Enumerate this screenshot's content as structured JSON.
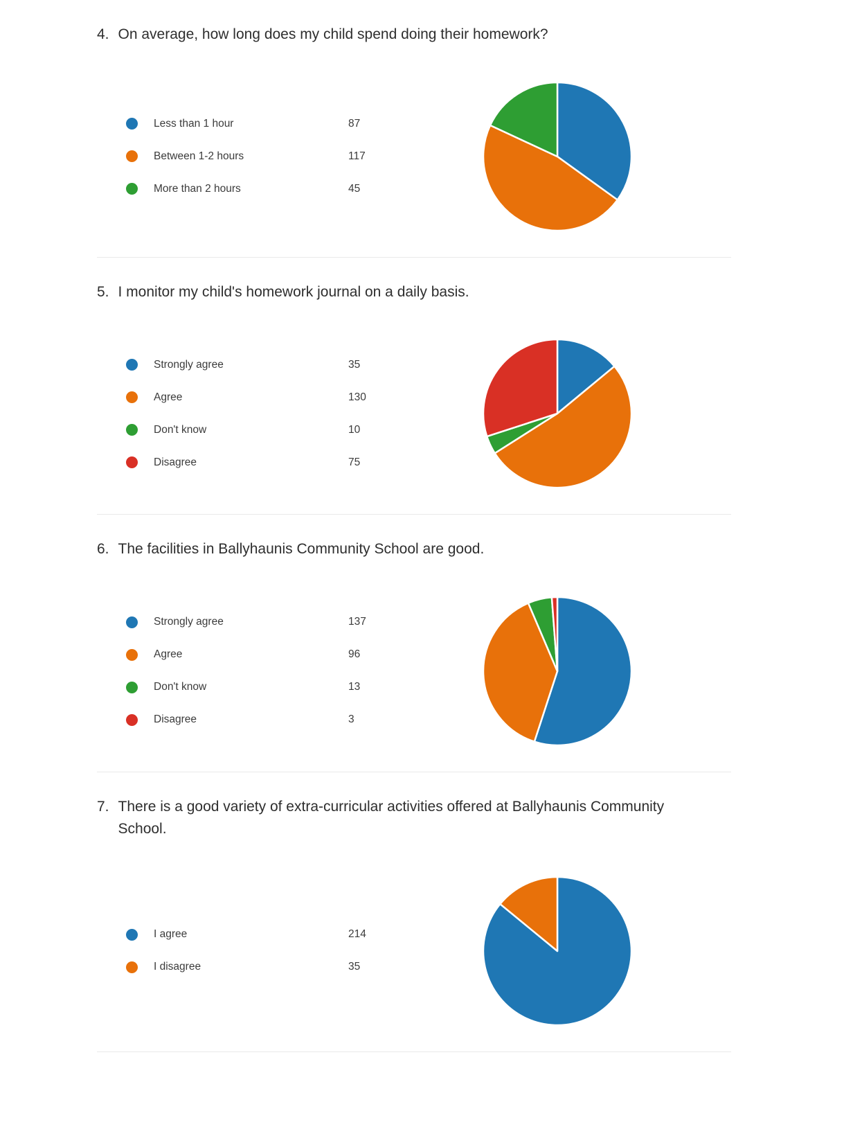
{
  "palette": {
    "blue": "#1f77b4",
    "orange": "#e8710a",
    "green": "#2e9e33",
    "red": "#d93025"
  },
  "questions": [
    {
      "number": "4.",
      "title": "On average, how long does my child spend doing their homework?",
      "options": [
        {
          "label": "Less than 1 hour",
          "count": "87",
          "color": "blue"
        },
        {
          "label": "Between 1-2 hours",
          "count": "117",
          "color": "orange"
        },
        {
          "label": "More than 2 hours",
          "count": "45",
          "color": "green"
        }
      ]
    },
    {
      "number": "5.",
      "title": "I monitor my child's homework journal on a daily basis.",
      "options": [
        {
          "label": "Strongly agree",
          "count": "35",
          "color": "blue"
        },
        {
          "label": "Agree",
          "count": "130",
          "color": "orange"
        },
        {
          "label": "Don't know",
          "count": "10",
          "color": "green"
        },
        {
          "label": "Disagree",
          "count": "75",
          "color": "red"
        }
      ]
    },
    {
      "number": "6.",
      "title": "The facilities in Ballyhaunis Community School are good.",
      "options": [
        {
          "label": "Strongly agree",
          "count": "137",
          "color": "blue"
        },
        {
          "label": "Agree",
          "count": "96",
          "color": "orange"
        },
        {
          "label": "Don't know",
          "count": "13",
          "color": "green"
        },
        {
          "label": "Disagree",
          "count": "3",
          "color": "red"
        }
      ]
    },
    {
      "number": "7.",
      "title": "There is a good variety of extra-curricular activities offered at Ballyhaunis Community School.",
      "options": [
        {
          "label": "I agree",
          "count": "214",
          "color": "blue"
        },
        {
          "label": "I disagree",
          "count": "35",
          "color": "orange"
        }
      ]
    }
  ],
  "chart_data": [
    {
      "type": "pie",
      "title": "4. On average, how long does my child spend doing their homework?",
      "labels": [
        "Less than 1 hour",
        "Between 1-2 hours",
        "More than 2 hours"
      ],
      "values": [
        87,
        117,
        45
      ],
      "total": 249,
      "colors": [
        "#1f77b4",
        "#e8710a",
        "#2e9e33"
      ],
      "start_angle": "12 o'clock",
      "direction": "clockwise",
      "legend_position": "left"
    },
    {
      "type": "pie",
      "title": "5. I monitor my child's homework journal on a daily basis.",
      "labels": [
        "Strongly agree",
        "Agree",
        "Don't know",
        "Disagree"
      ],
      "values": [
        35,
        130,
        10,
        75
      ],
      "total": 250,
      "colors": [
        "#1f77b4",
        "#e8710a",
        "#2e9e33",
        "#d93025"
      ],
      "start_angle": "12 o'clock",
      "direction": "clockwise",
      "legend_position": "left"
    },
    {
      "type": "pie",
      "title": "6. The facilities in Ballyhaunis Community School are good.",
      "labels": [
        "Strongly agree",
        "Agree",
        "Don't know",
        "Disagree"
      ],
      "values": [
        137,
        96,
        13,
        3
      ],
      "total": 249,
      "colors": [
        "#1f77b4",
        "#e8710a",
        "#2e9e33",
        "#d93025"
      ],
      "start_angle": "12 o'clock",
      "direction": "clockwise",
      "legend_position": "left"
    },
    {
      "type": "pie",
      "title": "7. There is a good variety of extra-curricular activities offered at Ballyhaunis Community School.",
      "labels": [
        "I agree",
        "I disagree"
      ],
      "values": [
        214,
        35
      ],
      "total": 249,
      "colors": [
        "#1f77b4",
        "#e8710a"
      ],
      "start_angle": "12 o'clock",
      "direction": "clockwise",
      "legend_position": "left"
    }
  ]
}
